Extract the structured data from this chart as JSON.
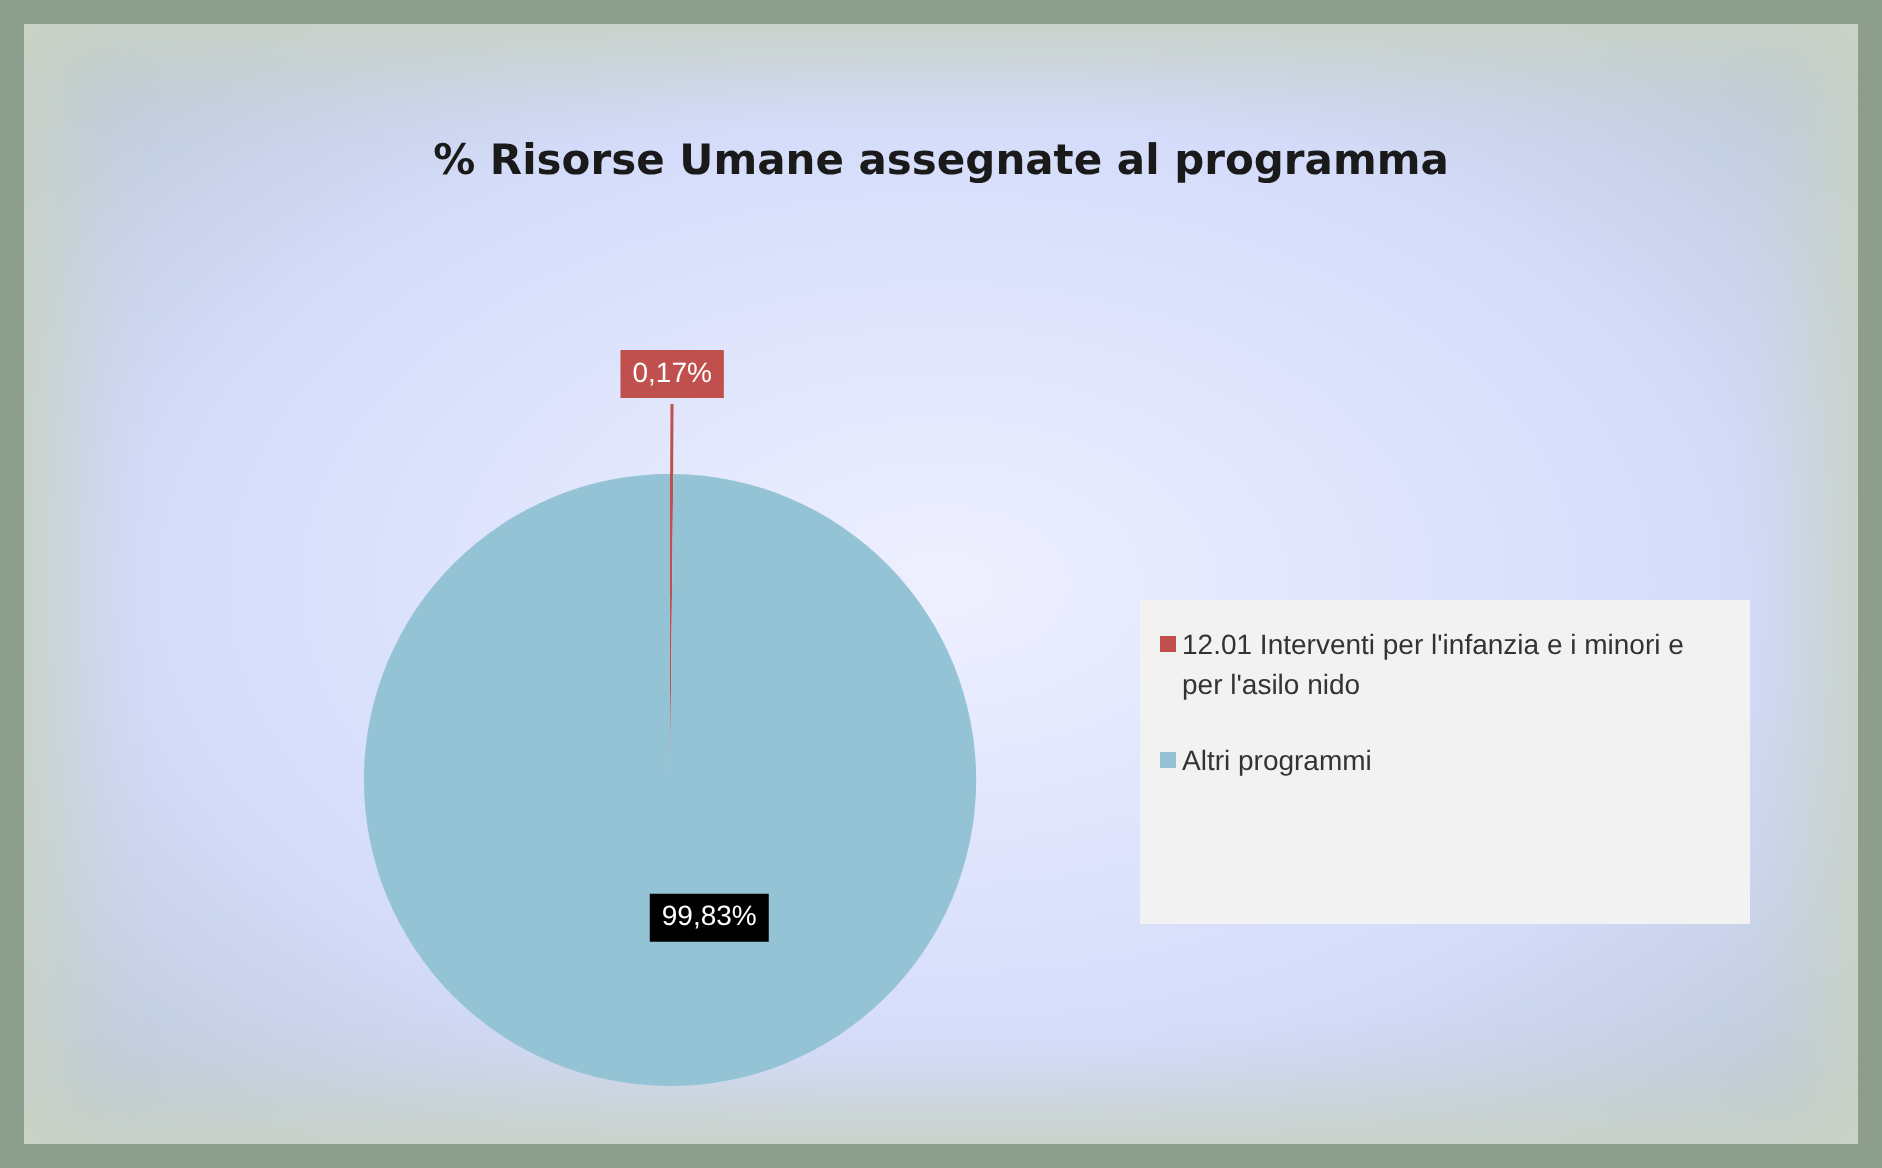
{
  "chart_data": {
    "type": "pie",
    "title": "% Risorse Umane assegnate al programma",
    "categories": [
      "12.01 Interventi per l'infanzia e i minori e per l'asilo nido",
      "Altri  programmi"
    ],
    "values": [
      0.17,
      99.83
    ],
    "colors": [
      "#c0504d",
      "#93c3d5"
    ],
    "value_labels": [
      "0,17%",
      "99,83%"
    ],
    "legend": "right"
  }
}
